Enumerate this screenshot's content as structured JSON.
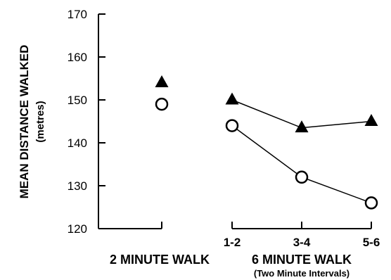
{
  "chart_data": {
    "type": "scatter",
    "ylabel": "MEAN DISTANCE WALKED",
    "yunit": "(metres)",
    "ylim": [
      120,
      170
    ],
    "yticks": [
      120,
      130,
      140,
      150,
      160,
      170
    ],
    "grid": false,
    "legend": "none",
    "panels": [
      {
        "xlabel": "2 MINUTE WALK",
        "xlabel_sub": "",
        "categories": [
          ""
        ],
        "series": [
          {
            "marker": "triangle",
            "connected": false,
            "values": [
              154
            ]
          },
          {
            "marker": "circle",
            "connected": false,
            "values": [
              149
            ]
          }
        ]
      },
      {
        "xlabel": "6 MINUTE WALK",
        "xlabel_sub": "(Two Minute Intervals)",
        "categories": [
          "1-2",
          "3-4",
          "5-6"
        ],
        "series": [
          {
            "marker": "triangle",
            "connected": true,
            "values": [
              150,
              143.5,
              145
            ]
          },
          {
            "marker": "circle",
            "connected": true,
            "values": [
              144,
              132,
              126
            ]
          }
        ]
      }
    ]
  }
}
